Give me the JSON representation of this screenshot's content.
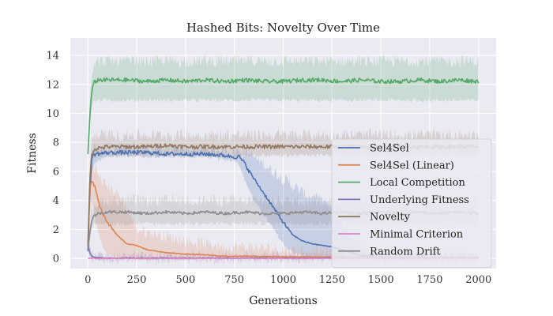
{
  "chart_data": {
    "type": "line",
    "title": "Hashed Bits: Novelty Over Time",
    "xlabel": "Generations",
    "ylabel": "Fitness",
    "xlim": [
      -90,
      2090
    ],
    "ylim": [
      -0.7,
      15.2
    ],
    "xticks": [
      0,
      250,
      500,
      750,
      1000,
      1250,
      1500,
      1750,
      2000
    ],
    "yticks": [
      0,
      2,
      4,
      6,
      8,
      10,
      12,
      14
    ],
    "grid": true,
    "legend_position": "lower-right",
    "series": [
      {
        "name": "Sel4Sel",
        "color": "#4c72b0",
        "x": [
          0,
          10,
          20,
          30,
          50,
          100,
          200,
          300,
          400,
          500,
          600,
          700,
          750,
          775,
          800,
          850,
          900,
          950,
          1000,
          1050,
          1100,
          1150,
          1200,
          1250,
          1300,
          1350,
          1400,
          1500,
          2000
        ],
        "y": [
          0.5,
          4.5,
          6.8,
          7.2,
          7.2,
          7.3,
          7.3,
          7.3,
          7.2,
          7.2,
          7.2,
          7.1,
          7.0,
          7.0,
          6.6,
          5.5,
          4.5,
          3.5,
          2.5,
          1.6,
          1.2,
          1.0,
          0.9,
          0.8,
          0.6,
          0.4,
          0.2,
          0.1,
          0.05
        ],
        "band_y": [
          0.5,
          4.0,
          6.0,
          6.5,
          6.7,
          7.0,
          7.1,
          7.0,
          7.0,
          7.0,
          7.0,
          6.8,
          6.8,
          6.5,
          5.5,
          4.0,
          3.0,
          2.0,
          1.0,
          0.4,
          0.2,
          0.1,
          0.0,
          0.0,
          0.0,
          0.0,
          0.0,
          0.0,
          0.0
        ],
        "band_hi": [
          0.9,
          5.5,
          7.4,
          7.6,
          7.6,
          7.6,
          7.6,
          7.6,
          7.5,
          7.5,
          7.5,
          7.4,
          7.4,
          7.4,
          7.3,
          7.0,
          6.5,
          6.0,
          5.5,
          5.0,
          4.5,
          4.2,
          4.0,
          3.5,
          2.5,
          1.5,
          0.8,
          0.3,
          0.2
        ]
      },
      {
        "name": "Sel4Sel (Linear)",
        "color": "#dd8452",
        "x": [
          0,
          10,
          20,
          40,
          60,
          80,
          100,
          150,
          200,
          250,
          300,
          400,
          500,
          600,
          700,
          800,
          1000,
          1200,
          1500,
          2000
        ],
        "y": [
          1.0,
          4.8,
          5.4,
          4.8,
          3.6,
          3.0,
          2.5,
          1.6,
          1.0,
          0.9,
          0.6,
          0.4,
          0.3,
          0.25,
          0.15,
          0.15,
          0.12,
          0.1,
          0.08,
          0.05
        ],
        "band_y": [
          0.3,
          3.0,
          4.0,
          2.5,
          1.5,
          0.8,
          0.3,
          0.0,
          0.0,
          0.0,
          0.0,
          0.0,
          0.0,
          0.0,
          0.0,
          0.0,
          0.0,
          0.0,
          0.0,
          0.0
        ],
        "band_hi": [
          1.8,
          6.0,
          6.5,
          6.2,
          5.5,
          5.2,
          5.0,
          4.5,
          3.5,
          2.0,
          1.8,
          1.5,
          1.2,
          1.0,
          0.8,
          0.8,
          0.6,
          0.5,
          0.3,
          0.2
        ]
      },
      {
        "name": "Local Competition",
        "color": "#55a868",
        "x": [
          0,
          10,
          20,
          30,
          50,
          100,
          200,
          300,
          400,
          500,
          600,
          700,
          800,
          900,
          1000,
          1100,
          1200,
          1300,
          1400,
          1500,
          1600,
          1700,
          1800,
          1900,
          2000
        ],
        "y": [
          7.2,
          9.8,
          11.5,
          12.1,
          12.3,
          12.3,
          12.3,
          12.2,
          12.3,
          12.2,
          12.3,
          12.2,
          12.3,
          12.2,
          12.2,
          12.3,
          12.3,
          12.2,
          12.3,
          12.2,
          12.2,
          12.3,
          12.2,
          12.3,
          12.2
        ],
        "band_y": [
          7.0,
          9.0,
          10.5,
          10.8,
          10.9,
          10.9,
          10.9,
          10.9,
          10.9,
          10.9,
          10.9,
          10.9,
          10.9,
          10.9,
          10.9,
          10.9,
          10.9,
          10.9,
          10.9,
          10.9,
          10.9,
          10.9,
          10.9,
          10.9,
          10.9
        ],
        "band_hi": [
          7.5,
          10.8,
          12.8,
          13.5,
          13.6,
          13.6,
          13.6,
          13.6,
          13.6,
          13.6,
          13.6,
          13.6,
          13.6,
          13.6,
          13.6,
          13.6,
          13.6,
          13.6,
          13.6,
          13.6,
          13.6,
          13.6,
          13.6,
          13.6,
          13.6
        ]
      },
      {
        "name": "Underlying Fitness",
        "color": "#8172b3",
        "x": [
          0,
          10,
          20,
          30,
          50,
          100,
          500,
          1000,
          1500,
          2000
        ],
        "y": [
          1.0,
          0.4,
          0.15,
          0.08,
          0.05,
          0.03,
          0.03,
          0.03,
          0.03,
          0.03
        ],
        "band_y": [
          0.6,
          0.2,
          0.05,
          0.0,
          0.0,
          0.0,
          0.0,
          0.0,
          0.0,
          0.0
        ],
        "band_hi": [
          1.4,
          0.7,
          0.3,
          0.15,
          0.1,
          0.08,
          0.08,
          0.08,
          0.08,
          0.08
        ]
      },
      {
        "name": "Novelty",
        "color": "#937860",
        "x": [
          0,
          10,
          20,
          30,
          50,
          100,
          200,
          300,
          400,
          500,
          600,
          700,
          800,
          900,
          1000,
          1100,
          1200,
          1300,
          1400,
          1500,
          1600,
          1700,
          1800,
          1900,
          2000
        ],
        "y": [
          0.8,
          5.5,
          7.2,
          7.5,
          7.6,
          7.7,
          7.7,
          7.7,
          7.8,
          7.7,
          7.7,
          7.7,
          7.7,
          7.7,
          7.7,
          7.7,
          7.7,
          7.7,
          7.7,
          7.7,
          7.7,
          7.7,
          7.7,
          7.7,
          7.7
        ],
        "band_y": [
          0.5,
          4.5,
          6.8,
          7.0,
          7.1,
          7.1,
          7.1,
          7.1,
          7.1,
          7.1,
          7.1,
          7.1,
          7.1,
          7.1,
          7.1,
          7.1,
          7.1,
          7.1,
          7.1,
          7.1,
          7.1,
          7.1,
          7.1,
          7.1,
          7.1
        ],
        "band_hi": [
          1.2,
          6.5,
          8.2,
          8.5,
          8.5,
          8.5,
          8.5,
          8.5,
          8.5,
          8.5,
          8.5,
          8.5,
          8.5,
          8.5,
          8.5,
          8.5,
          8.5,
          8.5,
          8.5,
          8.5,
          8.5,
          8.5,
          8.5,
          8.5,
          8.5
        ]
      },
      {
        "name": "Minimal Criterion",
        "color": "#da8bc3",
        "x": [
          0,
          2000
        ],
        "y": [
          0,
          0
        ],
        "band_y": [
          0,
          0
        ],
        "band_hi": [
          0,
          0
        ]
      },
      {
        "name": "Random Drift",
        "color": "#8c8c8c",
        "x": [
          0,
          10,
          20,
          30,
          50,
          100,
          200,
          300,
          400,
          500,
          600,
          700,
          800,
          900,
          1000,
          1100,
          1200,
          1300,
          1400,
          1500,
          1600,
          1700,
          1800,
          1900,
          2000
        ],
        "y": [
          0.5,
          1.8,
          2.6,
          2.9,
          3.1,
          3.2,
          3.2,
          3.1,
          3.2,
          3.1,
          3.2,
          3.1,
          3.2,
          3.1,
          3.1,
          3.2,
          3.1,
          3.2,
          3.1,
          3.2,
          3.1,
          3.2,
          3.1,
          3.2,
          3.1
        ],
        "band_y": [
          0.2,
          1.2,
          2.0,
          2.3,
          2.4,
          2.4,
          2.4,
          2.4,
          2.4,
          2.4,
          2.4,
          2.4,
          2.4,
          2.4,
          2.4,
          2.4,
          2.4,
          2.4,
          2.4,
          2.4,
          2.4,
          2.4,
          2.4,
          2.4,
          2.4
        ],
        "band_hi": [
          0.8,
          2.4,
          3.3,
          3.6,
          3.9,
          4.0,
          4.0,
          4.0,
          4.0,
          4.0,
          4.0,
          4.0,
          4.0,
          4.0,
          4.0,
          4.0,
          4.0,
          4.0,
          4.0,
          4.0,
          4.0,
          4.0,
          4.0,
          4.0,
          4.0
        ]
      }
    ]
  }
}
